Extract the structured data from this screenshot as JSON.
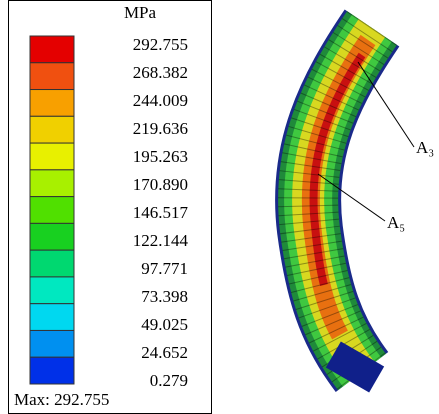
{
  "legend": {
    "unit": "MPa",
    "labels": [
      "292.755",
      "268.382",
      "244.009",
      "219.636",
      "195.263",
      "170.890",
      "146.517",
      "122.144",
      "97.771",
      "73.398",
      "49.025",
      "24.652",
      "0.279"
    ],
    "max": "Max: 292.755"
  },
  "annotations": [
    "A₃",
    "A₅"
  ]
}
